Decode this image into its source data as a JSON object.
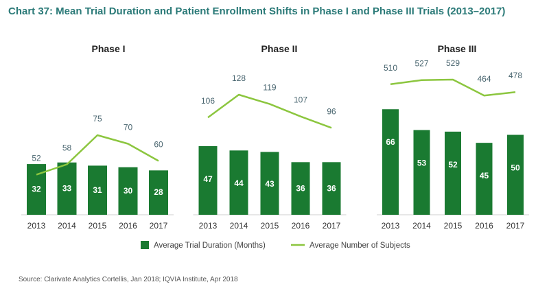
{
  "header": {
    "title": "Chart 37: Mean Trial Duration and Patient Enrollment Shifts in Phase I and Phase III Trials (2013–2017)"
  },
  "footer": {
    "source": "Source: Clarivate Analytics Cortellis, Jan 2018; IQVIA Institute, Apr 2018"
  },
  "legend": {
    "bar_label": "Average Trial Duration (Months)",
    "line_label": "Average Number of Subjects"
  },
  "colors": {
    "bar": "#1a7a31",
    "line": "#8cc63f",
    "label": "#4a6670",
    "title": "#2b7a78"
  },
  "chart_data": [
    {
      "type": "bar",
      "title": "Phase I",
      "categories": [
        "2013",
        "2014",
        "2015",
        "2016",
        "2017"
      ],
      "series": [
        {
          "name": "Average Trial Duration (Months)",
          "type": "bar",
          "values": [
            32,
            33,
            31,
            30,
            28
          ]
        },
        {
          "name": "Average Number of Subjects",
          "type": "line",
          "values": [
            52,
            58,
            75,
            70,
            60
          ]
        }
      ]
    },
    {
      "type": "bar",
      "title": "Phase II",
      "categories": [
        "2013",
        "2014",
        "2015",
        "2016",
        "2017"
      ],
      "series": [
        {
          "name": "Average Trial Duration (Months)",
          "type": "bar",
          "values": [
            47,
            44,
            43,
            36,
            36
          ]
        },
        {
          "name": "Average Number of Subjects",
          "type": "line",
          "values": [
            106,
            128,
            119,
            107,
            96
          ]
        }
      ]
    },
    {
      "type": "bar",
      "title": "Phase III",
      "categories": [
        "2013",
        "2014",
        "2015",
        "2016",
        "2017"
      ],
      "series": [
        {
          "name": "Average Trial Duration (Months)",
          "type": "bar",
          "values": [
            66,
            53,
            52,
            45,
            50
          ]
        },
        {
          "name": "Average Number of Subjects",
          "type": "line",
          "values": [
            510,
            527,
            529,
            464,
            478
          ]
        }
      ]
    }
  ]
}
